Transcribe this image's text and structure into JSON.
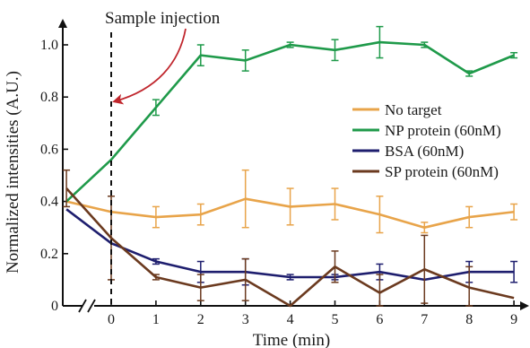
{
  "chart_data": {
    "type": "line",
    "title": "",
    "xlabel": "Time (min)",
    "ylabel": "Normalized intensities (A.U.)",
    "x": [
      -1,
      0,
      1,
      2,
      3,
      4,
      5,
      6,
      7,
      8,
      9
    ],
    "xticks": [
      "0",
      "1",
      "2",
      "3",
      "4",
      "5",
      "6",
      "7",
      "8",
      "9"
    ],
    "yticks": [
      "0",
      "0.2",
      "0.4",
      "0.6",
      "0.8",
      "1.0"
    ],
    "xlim": [
      -1.3,
      9.2
    ],
    "ylim": [
      0,
      1.05
    ],
    "axis_break": "x",
    "grid": false,
    "legend_position": "right",
    "annotation": {
      "text": "Sample injection",
      "x": 0
    },
    "series": [
      {
        "name": "No target",
        "color": "#e8a44a",
        "values": [
          0.4,
          0.36,
          0.34,
          0.35,
          0.41,
          0.38,
          0.39,
          0.35,
          0.3,
          0.34,
          0.36
        ],
        "errors": [
          0.0,
          0.0,
          0.04,
          0.04,
          0.11,
          0.07,
          0.06,
          0.07,
          0.02,
          0.04,
          0.03
        ]
      },
      {
        "name": "NP protein (60nM)",
        "color": "#1f9a4a",
        "values": [
          0.4,
          0.56,
          0.76,
          0.96,
          0.94,
          1.0,
          0.98,
          1.01,
          1.0,
          0.89,
          0.96
        ],
        "errors": [
          0.0,
          0.0,
          0.03,
          0.04,
          0.04,
          0.01,
          0.04,
          0.06,
          0.01,
          0.01,
          0.01
        ]
      },
      {
        "name": "BSA (60nM)",
        "color": "#1e1e6e",
        "values": [
          0.37,
          0.24,
          0.17,
          0.13,
          0.13,
          0.11,
          0.11,
          0.13,
          0.1,
          0.13,
          0.13
        ],
        "errors": [
          0.0,
          0.0,
          0.01,
          0.04,
          0.05,
          0.01,
          0.01,
          0.03,
          0.0,
          0.04,
          0.04
        ]
      },
      {
        "name": "SP protein (60nM)",
        "color": "#6b3a1f",
        "values": [
          0.45,
          0.26,
          0.11,
          0.07,
          0.1,
          0.0,
          0.15,
          0.05,
          0.14,
          0.07,
          0.03
        ],
        "errors": [
          0.07,
          0.16,
          0.01,
          0.05,
          0.08,
          0.0,
          0.06,
          0.07,
          0.13,
          0.08,
          0.0
        ]
      }
    ]
  }
}
